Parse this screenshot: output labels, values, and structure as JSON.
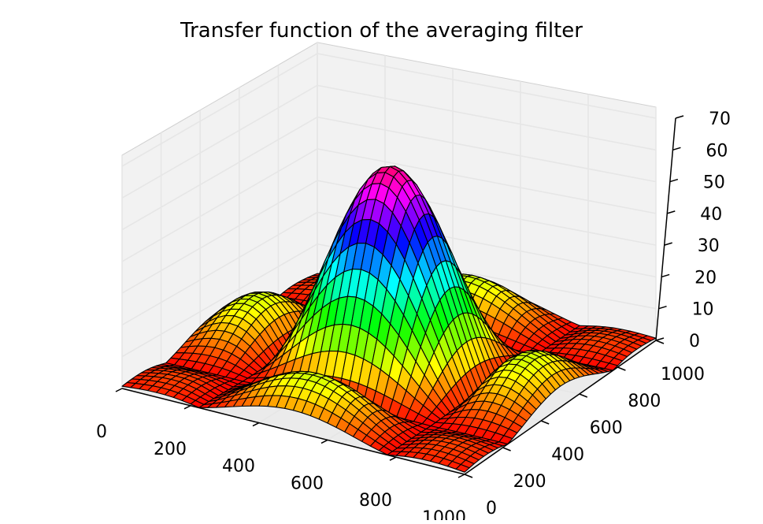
{
  "chart_data": {
    "type": "surface",
    "title": "Transfer function of the averaging filter",
    "xlabel": "",
    "ylabel": "",
    "zlabel": "",
    "x_ticks": [
      "0",
      "200",
      "400",
      "600",
      "800",
      "1000"
    ],
    "y_ticks": [
      "0",
      "200",
      "400",
      "600",
      "800",
      "1000"
    ],
    "z_ticks": [
      "0",
      "10",
      "20",
      "30",
      "40",
      "50",
      "60",
      "70"
    ],
    "xlim": [
      0,
      1000
    ],
    "ylim": [
      0,
      1000
    ],
    "zlim": [
      0,
      70
    ],
    "peak": {
      "x": 500,
      "y": 500,
      "z": 64
    },
    "grid": true,
    "colormap": "hsv",
    "edge_color": "#000000",
    "pane_color": "#f2f2f2",
    "grid_color": "#e6e6e6"
  }
}
